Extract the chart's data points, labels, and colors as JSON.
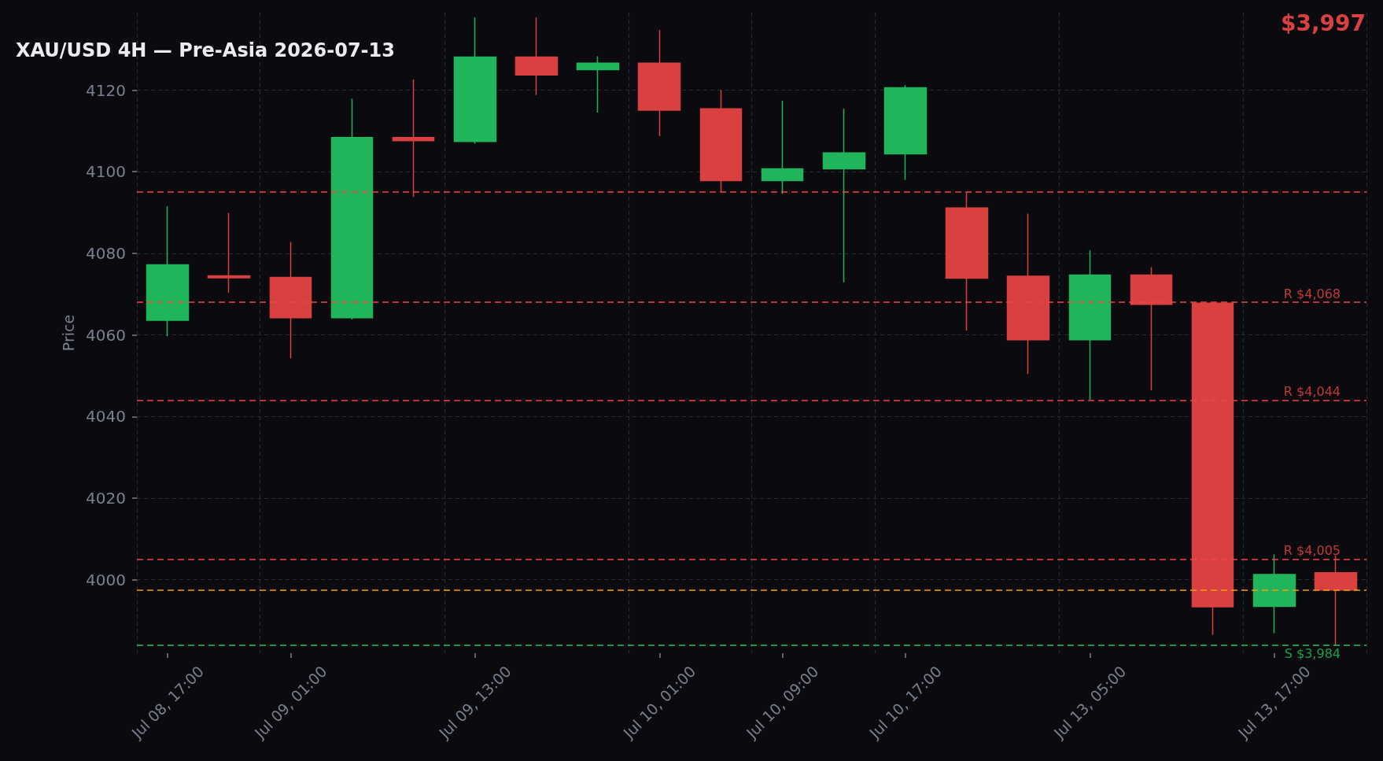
{
  "chart_data": {
    "type": "candlestick",
    "title": "XAU/USD 4H — Pre-Asia 2026-07-13",
    "ylabel": "Price",
    "annotations": [
      "$3,997"
    ],
    "categories": [
      "Jul 08, 17:00",
      null,
      "Jul 09, 01:00",
      null,
      null,
      "Jul 09, 13:00",
      null,
      null,
      "Jul 10, 01:00",
      null,
      "Jul 10, 09:00",
      null,
      "Jul 10, 17:00",
      null,
      null,
      "Jul 13, 05:00",
      null,
      null,
      "Jul 13, 17:00",
      null
    ],
    "ohlc": [
      [
        4063.6,
        4091.5,
        4059.7,
        4077.2
      ],
      [
        4074.5,
        4089.9,
        4070.4,
        4074.0
      ],
      [
        4074.1,
        4082.8,
        4054.3,
        4064.2
      ],
      [
        4064.2,
        4117.9,
        4063.8,
        4108.4
      ],
      [
        4108.4,
        4122.6,
        4093.8,
        4107.6
      ],
      [
        4107.4,
        4137.8,
        4106.9,
        4128.1
      ],
      [
        4128.1,
        4137.8,
        4118.8,
        4123.7
      ],
      [
        4125.0,
        4128.3,
        4114.5,
        4126.6
      ],
      [
        4126.6,
        4134.7,
        4108.7,
        4115.1
      ],
      [
        4115.4,
        4120.0,
        4095.1,
        4097.8
      ],
      [
        4097.8,
        4117.4,
        4094.6,
        4100.7
      ],
      [
        4100.7,
        4115.4,
        4072.9,
        4104.6
      ],
      [
        4104.4,
        4121.2,
        4098.0,
        4120.6
      ],
      [
        4091.1,
        4094.9,
        4061.1,
        4073.9
      ],
      [
        4074.4,
        4089.7,
        4050.4,
        4058.8
      ],
      [
        4058.8,
        4080.7,
        4044.1,
        4074.7
      ],
      [
        4074.7,
        4076.6,
        4046.4,
        4067.5
      ],
      [
        4067.8,
        4068.0,
        3986.5,
        3993.4
      ],
      [
        3993.5,
        4006.2,
        3986.9,
        4001.3
      ],
      [
        4001.7,
        4006.0,
        3983.8,
        3997.5
      ]
    ],
    "colors": [
      "#21b55b",
      "#d94141",
      "#d94141",
      "#21b55b",
      "#d94141",
      "#21b55b",
      "#d94141",
      "#21b55b",
      "#d94141",
      "#d94141",
      "#21b55b",
      "#21b55b",
      "#21b55b",
      "#d94141",
      "#d94141",
      "#21b55b",
      "#d94141",
      "#d94141",
      "#21b55b",
      "#d94141"
    ],
    "ylim": [
      3982,
      4139
    ],
    "yticks": [
      4000,
      4020,
      4040,
      4060,
      4080,
      4100,
      4120
    ],
    "grid": true,
    "ref_lines": [
      {
        "axis": "y",
        "value": 4095,
        "label": null,
        "color": "#ef4444",
        "line_style": "dashed"
      },
      {
        "axis": "y",
        "value": 4068,
        "label": "R $4,068",
        "color": "#ef4444",
        "line_style": "dashed"
      },
      {
        "axis": "y",
        "value": 4044,
        "label": "R $4,044",
        "color": "#ef4444",
        "line_style": "dashed"
      },
      {
        "axis": "y",
        "value": 4005,
        "label": "R $4,005",
        "color": "#ef4444",
        "line_style": "dashed"
      },
      {
        "axis": "y",
        "value": 3997.5,
        "label": null,
        "color": "#f59e0b",
        "line_style": "dashed"
      },
      {
        "axis": "y",
        "value": 3984,
        "label": "S $3,984",
        "color": "#22c55e",
        "line_style": "dashed"
      }
    ]
  }
}
